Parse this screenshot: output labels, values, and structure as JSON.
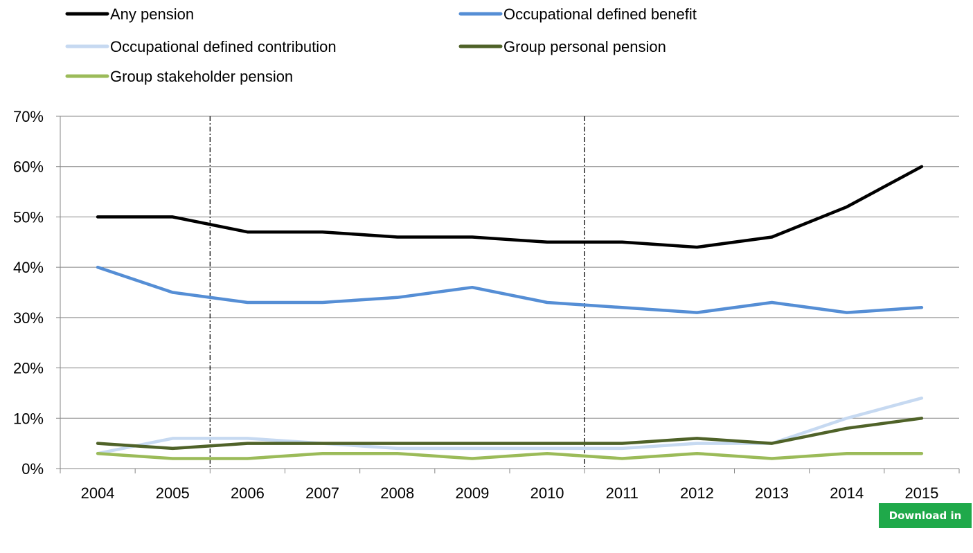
{
  "chart_data": {
    "type": "line",
    "categories": [
      "2004",
      "2005",
      "2006",
      "2007",
      "2008",
      "2009",
      "2010",
      "2011",
      "2012",
      "2013",
      "2014",
      "2015"
    ],
    "ylim": [
      0,
      70
    ],
    "y_ticks": [
      0,
      10,
      20,
      30,
      40,
      50,
      60,
      70
    ],
    "y_tick_labels": [
      "0%",
      "10%",
      "20%",
      "30%",
      "40%",
      "50%",
      "60%",
      "70%"
    ],
    "grid": "horizontal",
    "legend_placement": "top",
    "vertical_markers": [
      "2006",
      "2011"
    ],
    "series": [
      {
        "name": "Any pension",
        "color": "#000000",
        "values": [
          50,
          50,
          47,
          47,
          46,
          46,
          45,
          45,
          44,
          46,
          52,
          60
        ]
      },
      {
        "name": "Occupational defined benefit",
        "color": "#558ed5",
        "values": [
          40,
          35,
          33,
          33,
          34,
          36,
          33,
          32,
          31,
          33,
          31,
          32
        ]
      },
      {
        "name": "Occupational defined contribution",
        "color": "#c6d9f1",
        "values": [
          3,
          6,
          6,
          5,
          4,
          4,
          4,
          4,
          5,
          5,
          10,
          14
        ]
      },
      {
        "name": "Group personal pension",
        "color": "#4f6228",
        "values": [
          5,
          4,
          5,
          5,
          5,
          5,
          5,
          5,
          6,
          5,
          8,
          10
        ]
      },
      {
        "name": "Group stakeholder pension",
        "color": "#9bbb59",
        "values": [
          3,
          2,
          2,
          3,
          3,
          2,
          3,
          2,
          3,
          2,
          3,
          3
        ]
      }
    ]
  },
  "download": {
    "label": "Download in excel"
  }
}
